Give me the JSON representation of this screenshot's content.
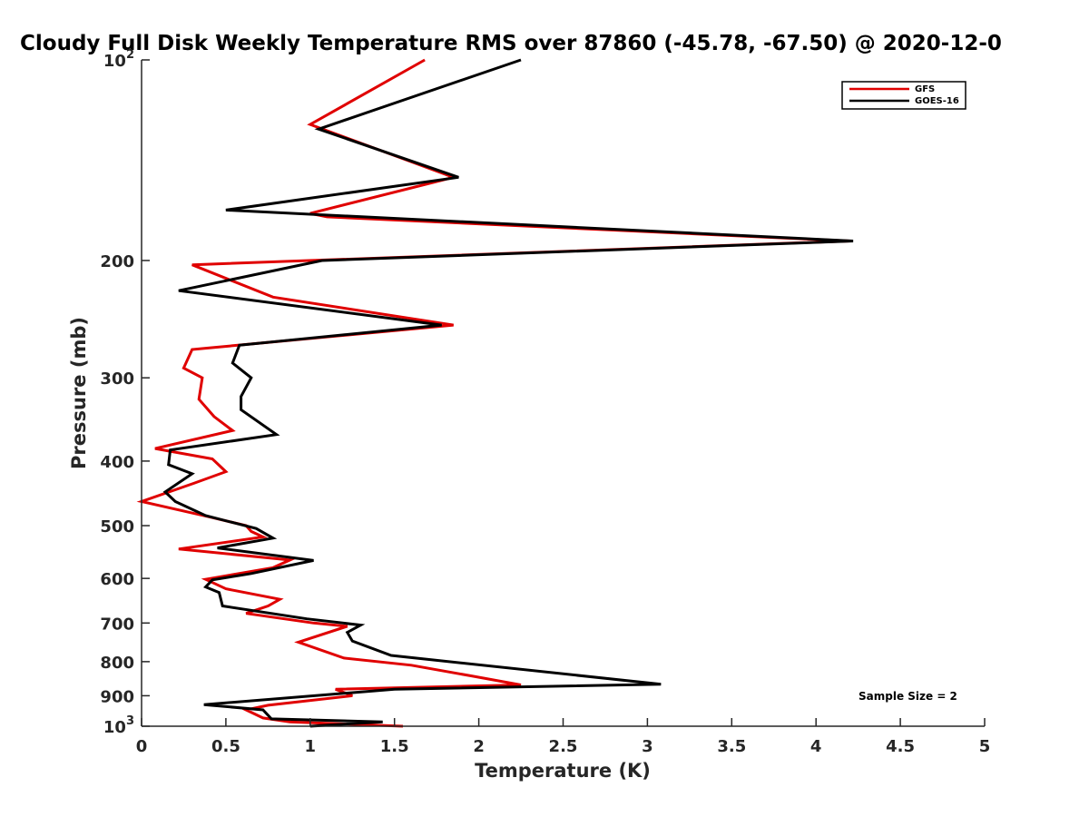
{
  "chart_data": {
    "type": "line",
    "title": "Cloudy Full Disk Weekly Temperature RMS over 87860 (-45.78, -67.50) @ 2020-12-0",
    "xlabel": "Temperature (K)",
    "ylabel": "Pressure (mb)",
    "xlim": [
      0,
      5
    ],
    "ylim": [
      100,
      1000
    ],
    "y_scale": "log",
    "y_reversed": true,
    "xticks": [
      0,
      0.5,
      1,
      1.5,
      2,
      2.5,
      3,
      3.5,
      4,
      4.5,
      5
    ],
    "xtick_labels": [
      "0",
      "0.5",
      "1",
      "1.5",
      "2",
      "2.5",
      "3",
      "3.5",
      "4",
      "4.5",
      "5"
    ],
    "yticks": [
      {
        "value": 100,
        "base": "10",
        "exp": "2"
      },
      {
        "value": 200,
        "base": "200",
        "exp": ""
      },
      {
        "value": 300,
        "base": "300",
        "exp": ""
      },
      {
        "value": 400,
        "base": "400",
        "exp": ""
      },
      {
        "value": 500,
        "base": "500",
        "exp": ""
      },
      {
        "value": 600,
        "base": "600",
        "exp": ""
      },
      {
        "value": 700,
        "base": "700",
        "exp": ""
      },
      {
        "value": 800,
        "base": "800",
        "exp": ""
      },
      {
        "value": 900,
        "base": "900",
        "exp": ""
      },
      {
        "value": 1000,
        "base": "10",
        "exp": "3"
      }
    ],
    "grid": false,
    "legend_position": "top-right",
    "annotation": "Sample Size = 2",
    "series": [
      {
        "name": "GFS",
        "color": "#e00000",
        "points": [
          {
            "x": 1.68,
            "p": 100
          },
          {
            "x": 1.0,
            "p": 125
          },
          {
            "x": 1.85,
            "p": 150
          },
          {
            "x": 1.0,
            "p": 170
          },
          {
            "x": 1.1,
            "p": 172
          },
          {
            "x": 4.2,
            "p": 187
          },
          {
            "x": 0.3,
            "p": 203
          },
          {
            "x": 0.78,
            "p": 227
          },
          {
            "x": 1.85,
            "p": 250
          },
          {
            "x": 0.3,
            "p": 272
          },
          {
            "x": 0.25,
            "p": 290
          },
          {
            "x": 0.36,
            "p": 300
          },
          {
            "x": 0.34,
            "p": 323
          },
          {
            "x": 0.43,
            "p": 343
          },
          {
            "x": 0.54,
            "p": 360
          },
          {
            "x": 0.08,
            "p": 383
          },
          {
            "x": 0.42,
            "p": 397
          },
          {
            "x": 0.5,
            "p": 415
          },
          {
            "x": 0.31,
            "p": 432
          },
          {
            "x": 0.0,
            "p": 460
          },
          {
            "x": 0.4,
            "p": 485
          },
          {
            "x": 0.62,
            "p": 500
          },
          {
            "x": 0.65,
            "p": 510
          },
          {
            "x": 0.72,
            "p": 520
          },
          {
            "x": 0.22,
            "p": 542
          },
          {
            "x": 0.88,
            "p": 563
          },
          {
            "x": 0.78,
            "p": 578
          },
          {
            "x": 0.38,
            "p": 602
          },
          {
            "x": 0.5,
            "p": 622
          },
          {
            "x": 0.82,
            "p": 645
          },
          {
            "x": 0.75,
            "p": 660
          },
          {
            "x": 0.62,
            "p": 677
          },
          {
            "x": 1.02,
            "p": 700
          },
          {
            "x": 1.22,
            "p": 708
          },
          {
            "x": 0.93,
            "p": 748
          },
          {
            "x": 1.2,
            "p": 790
          },
          {
            "x": 1.6,
            "p": 810
          },
          {
            "x": 1.95,
            "p": 840
          },
          {
            "x": 2.25,
            "p": 867
          },
          {
            "x": 1.15,
            "p": 880
          },
          {
            "x": 1.25,
            "p": 900
          },
          {
            "x": 0.75,
            "p": 930
          },
          {
            "x": 0.62,
            "p": 945
          },
          {
            "x": 0.72,
            "p": 972
          },
          {
            "x": 0.88,
            "p": 985
          },
          {
            "x": 1.55,
            "p": 1000
          }
        ]
      },
      {
        "name": "GOES-16",
        "color": "#000000",
        "points": [
          {
            "x": 2.25,
            "p": 100
          },
          {
            "x": 1.05,
            "p": 127
          },
          {
            "x": 1.88,
            "p": 150
          },
          {
            "x": 0.5,
            "p": 168
          },
          {
            "x": 4.22,
            "p": 187
          },
          {
            "x": 1.07,
            "p": 200
          },
          {
            "x": 0.22,
            "p": 222
          },
          {
            "x": 1.78,
            "p": 250
          },
          {
            "x": 0.58,
            "p": 268
          },
          {
            "x": 0.54,
            "p": 285
          },
          {
            "x": 0.65,
            "p": 300
          },
          {
            "x": 0.59,
            "p": 320
          },
          {
            "x": 0.59,
            "p": 335
          },
          {
            "x": 0.8,
            "p": 365
          },
          {
            "x": 0.17,
            "p": 385
          },
          {
            "x": 0.16,
            "p": 405
          },
          {
            "x": 0.3,
            "p": 418
          },
          {
            "x": 0.14,
            "p": 445
          },
          {
            "x": 0.2,
            "p": 460
          },
          {
            "x": 0.38,
            "p": 483
          },
          {
            "x": 0.68,
            "p": 505
          },
          {
            "x": 0.78,
            "p": 522
          },
          {
            "x": 0.45,
            "p": 540
          },
          {
            "x": 1.02,
            "p": 564
          },
          {
            "x": 0.65,
            "p": 590
          },
          {
            "x": 0.42,
            "p": 603
          },
          {
            "x": 0.38,
            "p": 618
          },
          {
            "x": 0.46,
            "p": 630
          },
          {
            "x": 0.48,
            "p": 660
          },
          {
            "x": 0.98,
            "p": 690
          },
          {
            "x": 1.3,
            "p": 705
          },
          {
            "x": 1.22,
            "p": 723
          },
          {
            "x": 1.25,
            "p": 745
          },
          {
            "x": 1.48,
            "p": 783
          },
          {
            "x": 3.08,
            "p": 865
          },
          {
            "x": 1.5,
            "p": 880
          },
          {
            "x": 0.37,
            "p": 928
          },
          {
            "x": 0.72,
            "p": 945
          },
          {
            "x": 0.77,
            "p": 975
          },
          {
            "x": 1.43,
            "p": 985
          },
          {
            "x": 1.0,
            "p": 1000
          }
        ]
      }
    ]
  }
}
